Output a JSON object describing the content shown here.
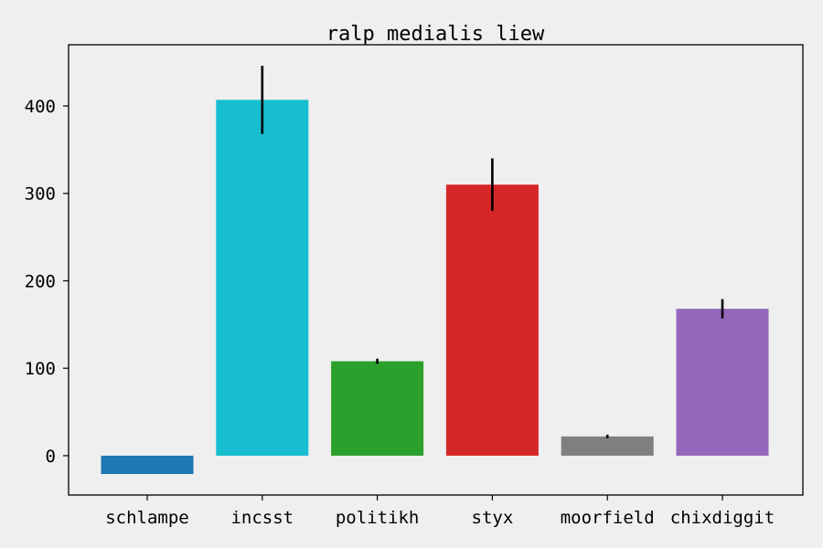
{
  "chart_data": {
    "type": "bar",
    "title": "ralp medialis liew",
    "xlabel": "",
    "ylabel": "",
    "categories": [
      "schlampe",
      "incsst",
      "politikh",
      "styx",
      "moorfield",
      "chixdiggit"
    ],
    "values": [
      -21,
      407,
      108,
      310,
      22,
      168
    ],
    "errors": [
      0,
      39,
      3,
      30,
      2,
      11
    ],
    "colors": [
      "#1f77b4",
      "#17becf",
      "#2ca02c",
      "#d62728",
      "#7f7f7f",
      "#9467bd"
    ],
    "ylim": [
      -45,
      470
    ],
    "yticks": [
      0,
      100,
      200,
      300,
      400
    ],
    "ytick_labels": [
      "0",
      "100",
      "200",
      "300",
      "400"
    ],
    "grid": false,
    "legend": "none",
    "background": "#efefef",
    "error_color": "#000000"
  }
}
